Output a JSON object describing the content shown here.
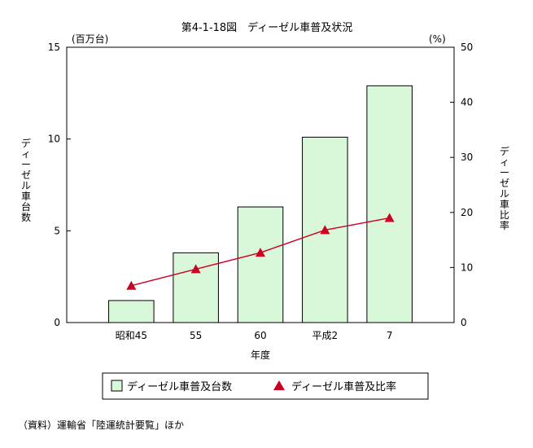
{
  "chart_data": {
    "type": "bar",
    "title": "第4-1-18図　ディーゼル車普及状況",
    "categories": [
      "昭和45",
      "55",
      "60",
      "平成2",
      "7"
    ],
    "xlabel": "年度",
    "y_left": {
      "label": "ディーゼル車台数",
      "unit": "(百万台)",
      "ylim": [
        0,
        15
      ],
      "ticks": [
        "0",
        "5",
        "10",
        "15"
      ]
    },
    "y_right": {
      "label": "ディーゼル車比率",
      "unit": "(%)",
      "ylim": [
        0,
        50
      ],
      "ticks": [
        "0",
        "10",
        "20",
        "30",
        "40",
        "50"
      ]
    },
    "series": [
      {
        "name": "ディーゼル車普及台数",
        "kind": "bar",
        "axis": "left",
        "values": [
          1.2,
          3.8,
          6.3,
          10.1,
          12.9
        ]
      },
      {
        "name": "ディーゼル車普及比率",
        "kind": "line",
        "axis": "right",
        "values": [
          6.7,
          9.7,
          12.7,
          16.8,
          19.0
        ]
      }
    ],
    "grid": false,
    "legend": "bottom"
  },
  "colors": {
    "bar_fill": "#d9f7d9",
    "bar_stroke": "#000000",
    "line": "#cc0022",
    "marker": "#cc0022"
  },
  "source": "（資料）運輸省「陸運統計要覧」ほか"
}
